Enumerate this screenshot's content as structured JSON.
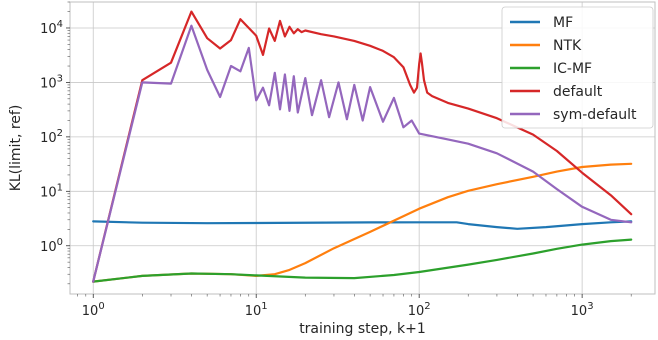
{
  "chart_data": {
    "type": "line",
    "xlabel": "training step, k+1",
    "ylabel": "KL(limit, ref)",
    "xscale": "log",
    "yscale": "log",
    "xlim": [
      0.72,
      2800
    ],
    "ylim": [
      0.13,
      30000
    ],
    "grid": true,
    "legend_position": "top-right",
    "xticks": [
      {
        "value": 1,
        "label": "10^0"
      },
      {
        "value": 10,
        "label": "10^1"
      },
      {
        "value": 100,
        "label": "10^2"
      },
      {
        "value": 1000,
        "label": "10^3"
      }
    ],
    "yticks": [
      {
        "value": 1,
        "label": "10^0"
      },
      {
        "value": 10,
        "label": "10^1"
      },
      {
        "value": 100,
        "label": "10^2"
      },
      {
        "value": 1000,
        "label": "10^3"
      },
      {
        "value": 10000,
        "label": "10^4"
      }
    ],
    "series": [
      {
        "name": "MF",
        "color": "#1f77b4",
        "points": [
          [
            1,
            2.8
          ],
          [
            2,
            2.65
          ],
          [
            5,
            2.6
          ],
          [
            10,
            2.62
          ],
          [
            50,
            2.68
          ],
          [
            100,
            2.7
          ],
          [
            170,
            2.7
          ],
          [
            200,
            2.5
          ],
          [
            300,
            2.2
          ],
          [
            400,
            2.05
          ],
          [
            600,
            2.2
          ],
          [
            1000,
            2.5
          ],
          [
            1500,
            2.7
          ],
          [
            2000,
            2.8
          ]
        ]
      },
      {
        "name": "NTK",
        "color": "#ff7f0e",
        "points": [
          [
            1,
            0.22
          ],
          [
            2,
            0.28
          ],
          [
            4,
            0.31
          ],
          [
            7,
            0.3
          ],
          [
            10,
            0.28
          ],
          [
            13,
            0.3
          ],
          [
            16,
            0.36
          ],
          [
            20,
            0.48
          ],
          [
            30,
            0.9
          ],
          [
            50,
            1.8
          ],
          [
            100,
            4.8
          ],
          [
            150,
            7.8
          ],
          [
            200,
            10.2
          ],
          [
            300,
            13.5
          ],
          [
            500,
            18.5
          ],
          [
            700,
            23
          ],
          [
            1000,
            28
          ],
          [
            1500,
            31
          ],
          [
            2000,
            32
          ]
        ]
      },
      {
        "name": "IC-MF",
        "color": "#2ca02c",
        "points": [
          [
            1,
            0.22
          ],
          [
            2,
            0.28
          ],
          [
            4,
            0.31
          ],
          [
            7,
            0.3
          ],
          [
            10,
            0.285
          ],
          [
            20,
            0.26
          ],
          [
            40,
            0.255
          ],
          [
            70,
            0.29
          ],
          [
            100,
            0.33
          ],
          [
            200,
            0.45
          ],
          [
            300,
            0.55
          ],
          [
            500,
            0.72
          ],
          [
            700,
            0.88
          ],
          [
            1000,
            1.05
          ],
          [
            1500,
            1.22
          ],
          [
            2000,
            1.3
          ]
        ]
      },
      {
        "name": "default",
        "color": "#d62728",
        "points": [
          [
            1,
            0.22
          ],
          [
            2,
            1100
          ],
          [
            3,
            2300
          ],
          [
            4,
            20000
          ],
          [
            5,
            6500
          ],
          [
            6,
            4200
          ],
          [
            7,
            6000
          ],
          [
            8,
            14500
          ],
          [
            9,
            10000
          ],
          [
            10,
            7200
          ],
          [
            11,
            3200
          ],
          [
            12,
            9800
          ],
          [
            13,
            5800
          ],
          [
            14,
            13500
          ],
          [
            15,
            7000
          ],
          [
            16,
            10500
          ],
          [
            17,
            8000
          ],
          [
            18,
            9500
          ],
          [
            19,
            8400
          ],
          [
            20,
            9000
          ],
          [
            25,
            7700
          ],
          [
            30,
            7000
          ],
          [
            40,
            5800
          ],
          [
            50,
            4700
          ],
          [
            60,
            3800
          ],
          [
            70,
            2900
          ],
          [
            80,
            1900
          ],
          [
            88,
            900
          ],
          [
            93,
            650
          ],
          [
            97,
            800
          ],
          [
            100,
            2200
          ],
          [
            102,
            3400
          ],
          [
            104,
            2300
          ],
          [
            107,
            1100
          ],
          [
            112,
            650
          ],
          [
            120,
            560
          ],
          [
            150,
            420
          ],
          [
            200,
            330
          ],
          [
            300,
            220
          ],
          [
            500,
            110
          ],
          [
            700,
            55
          ],
          [
            1000,
            22
          ],
          [
            1500,
            8.5
          ],
          [
            2000,
            3.8
          ]
        ]
      },
      {
        "name": "sym-default",
        "color": "#9467bd",
        "points": [
          [
            1,
            0.22
          ],
          [
            2,
            1000
          ],
          [
            3,
            950
          ],
          [
            4,
            11000
          ],
          [
            5,
            1700
          ],
          [
            6,
            540
          ],
          [
            7,
            2000
          ],
          [
            8,
            1600
          ],
          [
            9,
            4300
          ],
          [
            10,
            470
          ],
          [
            11,
            800
          ],
          [
            12,
            380
          ],
          [
            13,
            1500
          ],
          [
            14,
            320
          ],
          [
            15,
            1400
          ],
          [
            16,
            300
          ],
          [
            17,
            1300
          ],
          [
            18,
            280
          ],
          [
            20,
            1200
          ],
          [
            22,
            250
          ],
          [
            25,
            1100
          ],
          [
            28,
            230
          ],
          [
            32,
            1000
          ],
          [
            36,
            210
          ],
          [
            40,
            900
          ],
          [
            45,
            200
          ],
          [
            50,
            820
          ],
          [
            60,
            190
          ],
          [
            70,
            520
          ],
          [
            80,
            150
          ],
          [
            90,
            200
          ],
          [
            100,
            115
          ],
          [
            150,
            90
          ],
          [
            200,
            75
          ],
          [
            300,
            50
          ],
          [
            500,
            23
          ],
          [
            700,
            11
          ],
          [
            1000,
            5.2
          ],
          [
            1500,
            3.0
          ],
          [
            2000,
            2.7
          ]
        ]
      }
    ]
  }
}
